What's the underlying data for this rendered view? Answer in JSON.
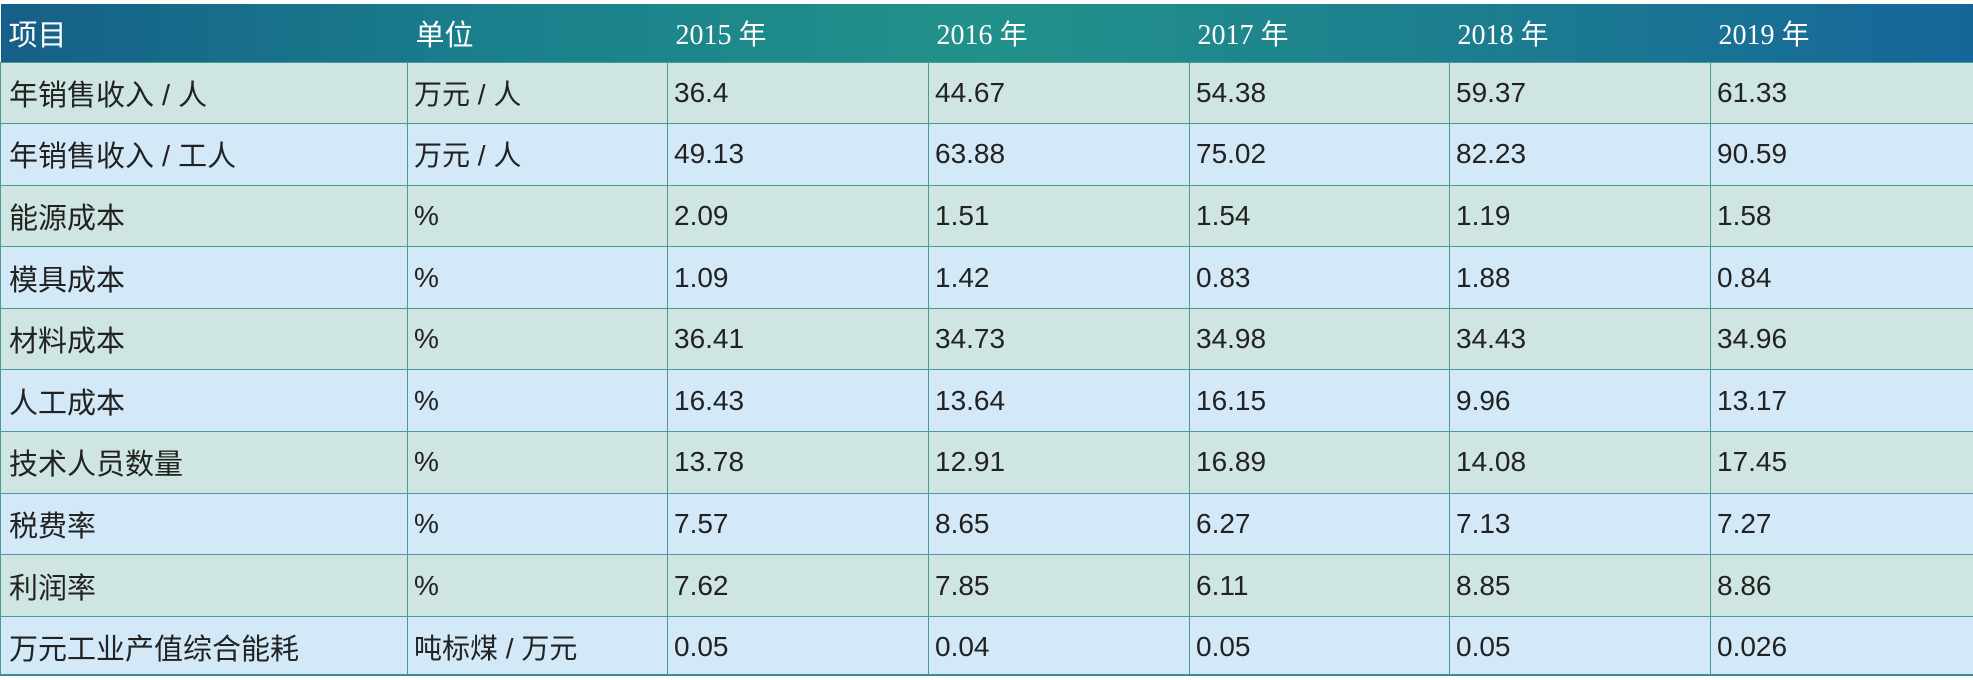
{
  "header": {
    "item": "项目",
    "unit": "单位",
    "years": [
      "2015 年",
      "2016 年",
      "2017 年",
      "2018 年",
      "2019 年"
    ]
  },
  "rows": [
    {
      "metric": "年销售收入 / 人",
      "unit": "万元 / 人",
      "values": [
        "36.4",
        "44.67",
        "54.38",
        "59.37",
        "61.33"
      ]
    },
    {
      "metric": "年销售收入 / 工人",
      "unit": "万元 / 人",
      "values": [
        "49.13",
        "63.88",
        "75.02",
        "82.23",
        "90.59"
      ]
    },
    {
      "metric": "能源成本",
      "unit": "%",
      "values": [
        "2.09",
        "1.51",
        "1.54",
        "1.19",
        "1.58"
      ]
    },
    {
      "metric": "模具成本",
      "unit": "%",
      "values": [
        "1.09",
        "1.42",
        "0.83",
        "1.88",
        "0.84"
      ]
    },
    {
      "metric": "材料成本",
      "unit": "%",
      "values": [
        "36.41",
        "34.73",
        "34.98",
        "34.43",
        "34.96"
      ]
    },
    {
      "metric": "人工成本",
      "unit": "%",
      "values": [
        "16.43",
        "13.64",
        "16.15",
        "9.96",
        "13.17"
      ]
    },
    {
      "metric": "技术人员数量",
      "unit": "%",
      "values": [
        "13.78",
        "12.91",
        "16.89",
        "14.08",
        "17.45"
      ]
    },
    {
      "metric": "税费率",
      "unit": "%",
      "values": [
        "7.57",
        "8.65",
        "6.27",
        "7.13",
        "7.27"
      ]
    },
    {
      "metric": "利润率",
      "unit": "%",
      "values": [
        "7.62",
        "7.85",
        "6.11",
        "8.85",
        "8.86"
      ]
    },
    {
      "metric": "万元工业产值综合能耗",
      "unit": "吨标煤 / 万元",
      "values": [
        "0.05",
        "0.04",
        "0.05",
        "0.05",
        "0.026"
      ]
    }
  ],
  "colors": {
    "header_gradient": [
      "#155f88",
      "#22918a",
      "#16669a"
    ],
    "row_odd": "#cfe5e1",
    "row_even": "#d3e9f7",
    "border": "#4b9a97"
  }
}
